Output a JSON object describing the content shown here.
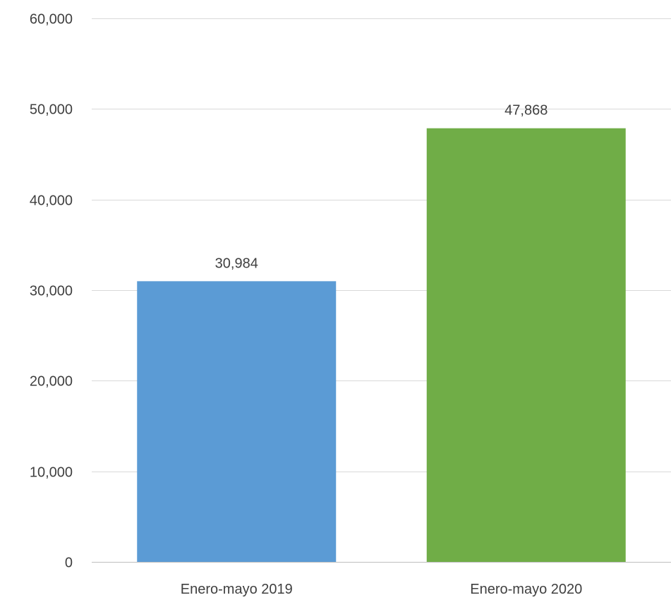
{
  "chart_data": {
    "type": "bar",
    "categories": [
      "Enero-mayo 2019",
      "Enero-mayo 2020"
    ],
    "values": [
      30984,
      47868
    ],
    "value_labels": [
      "30,984",
      "47,868"
    ],
    "colors": [
      "#5B9BD5",
      "#70AD47"
    ],
    "title": "",
    "xlabel": "",
    "ylabel": "",
    "ylim": [
      0,
      60000
    ],
    "yticks": [
      0,
      10000,
      20000,
      30000,
      40000,
      50000,
      60000
    ],
    "ytick_labels": [
      "0",
      "10,000",
      "20,000",
      "30,000",
      "40,000",
      "50,000",
      "60,000"
    ],
    "grid": true,
    "legend": "none"
  }
}
